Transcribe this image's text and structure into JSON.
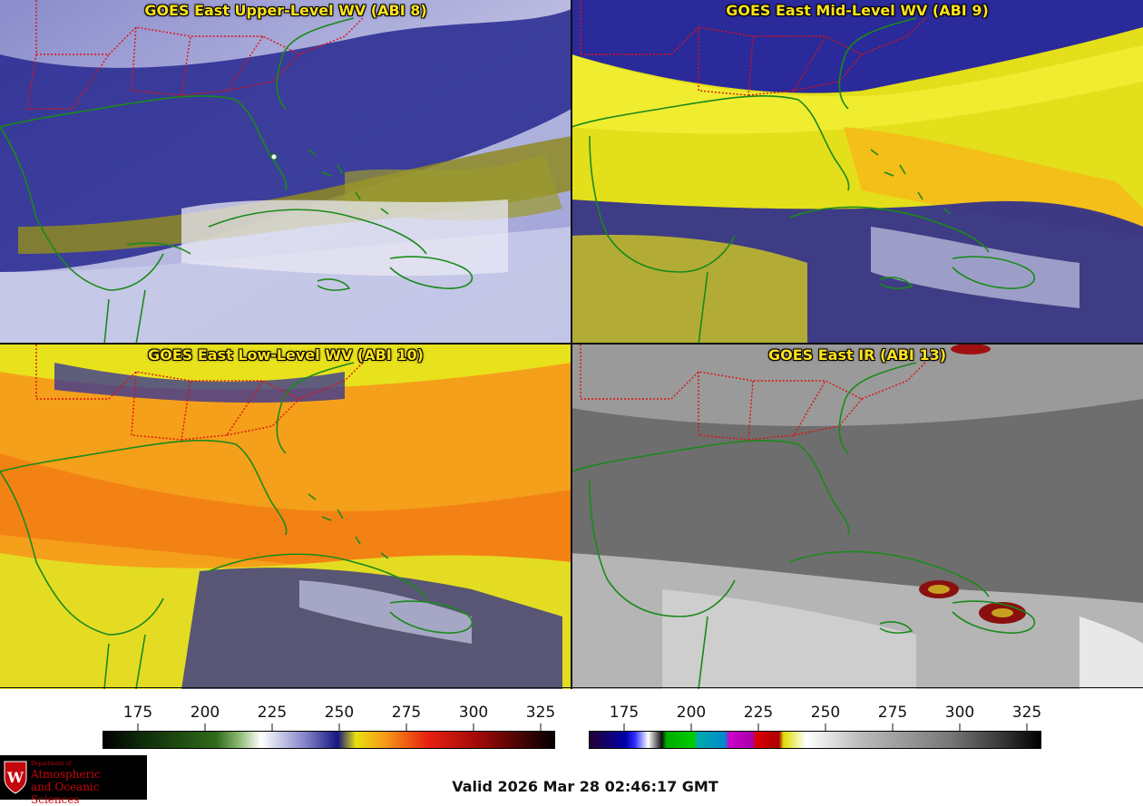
{
  "panels": [
    {
      "title": "GOES East Upper-Level WV (ABI 8)",
      "palette": "upper-wv"
    },
    {
      "title": "GOES East Mid-Level WV (ABI 9)",
      "palette": "mid-wv"
    },
    {
      "title": "GOES East Low-Level WV (ABI 10)",
      "palette": "low-wv"
    },
    {
      "title": "GOES East IR (ABI 13)",
      "palette": "ir"
    }
  ],
  "colorbars": {
    "left": {
      "ticks": [
        "175",
        "200",
        "225",
        "250",
        "275",
        "300",
        "325"
      ]
    },
    "right": {
      "ticks": [
        "175",
        "200",
        "225",
        "250",
        "275",
        "300",
        "325"
      ]
    }
  },
  "logo": {
    "department": "Department of",
    "line1": "Atmospheric",
    "line2": "and Oceanic Sciences",
    "seal_letter": "W"
  },
  "footer": {
    "valid_time": "Valid 2026 Mar 28 02:46:17 GMT"
  },
  "colors": {
    "title": "#ffe21a",
    "coastline": "#1a8a1a",
    "state_borders": "#e01010",
    "logo_red": "#c5050c"
  }
}
